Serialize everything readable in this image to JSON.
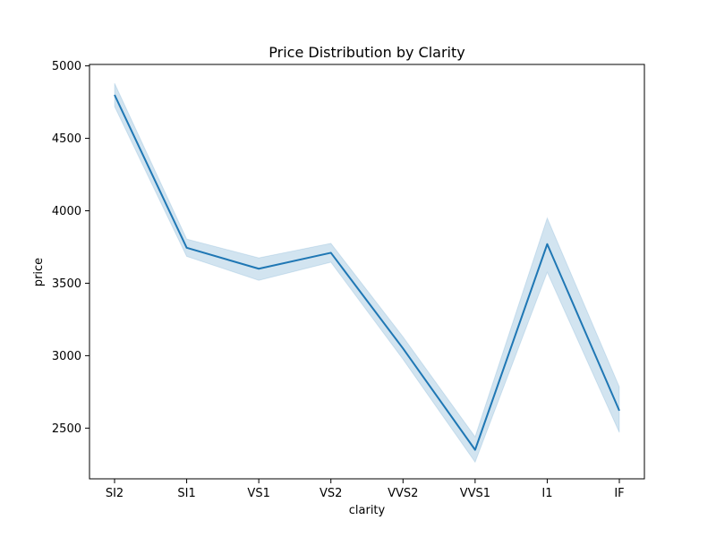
{
  "chart_data": {
    "type": "line",
    "title": "Price Distribution by Clarity",
    "xlabel": "clarity",
    "ylabel": "price",
    "categories": [
      "SI2",
      "SI1",
      "VS1",
      "VS2",
      "VVS2",
      "VVS1",
      "I1",
      "IF"
    ],
    "series": [
      {
        "values": [
          4800,
          3745,
          3600,
          3710,
          3050,
          2350,
          3770,
          2620
        ],
        "ci_lower": [
          4720,
          3685,
          3520,
          3645,
          2975,
          2265,
          3575,
          2470
        ],
        "ci_upper": [
          4880,
          3805,
          3675,
          3775,
          3130,
          2440,
          3950,
          2785
        ]
      }
    ],
    "ylim": [
      2150,
      5010
    ],
    "yticks": [
      2500,
      3000,
      3500,
      4000,
      4500,
      5000
    ],
    "grid": false,
    "colors": {
      "line": "#1f77b4",
      "band": "#1f77b4"
    }
  }
}
